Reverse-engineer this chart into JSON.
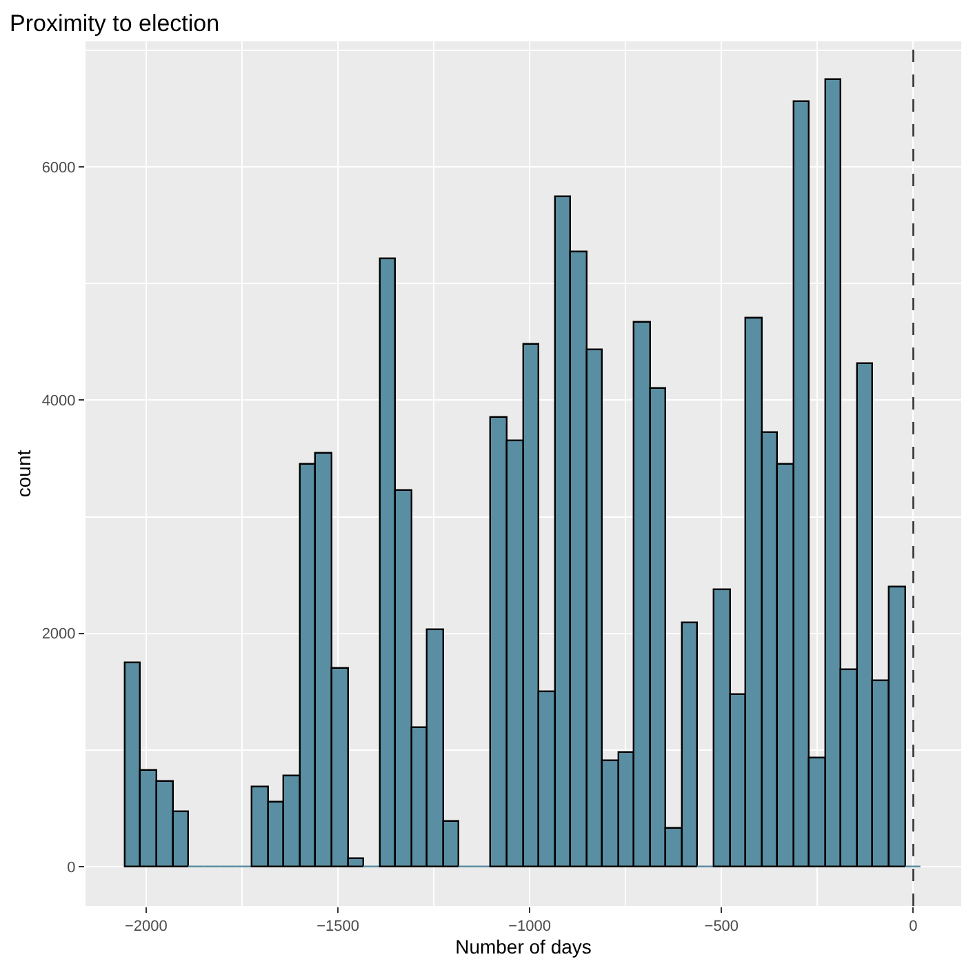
{
  "chart_data": {
    "type": "histogram",
    "title": "Proximity to election",
    "xlabel": "Number of days",
    "ylabel": "count",
    "bins": [
      -2054,
      -2012.5,
      -1971,
      -1929.5,
      -1888,
      -1846.5,
      -1805,
      -1763.5,
      -1722,
      -1680.5,
      -1639,
      -1597.5,
      -1556,
      -1514.5,
      -1473,
      -1431.5,
      -1390,
      -1348.5,
      -1307,
      -1265.5,
      -1224,
      -1182.5,
      -1141,
      -1099.5,
      -1058,
      -1016.5,
      -975,
      -933.5,
      -892,
      -850.5,
      -809,
      -767.5,
      -726,
      -684.5,
      -643,
      -601.5,
      -560,
      -518.5,
      -477,
      -435.5,
      -394,
      -352.5,
      -311,
      -269.5,
      -228,
      -186.5,
      -145,
      -103.5,
      -62,
      -20.5,
      21
    ],
    "values": [
      1740,
      820,
      730,
      470,
      0,
      0,
      0,
      0,
      680,
      550,
      780,
      3450,
      3540,
      1700,
      70,
      0,
      5210,
      3220,
      1190,
      2030,
      380,
      0,
      0,
      3850,
      3650,
      4470,
      1500,
      5740,
      5270,
      4430,
      910,
      980,
      4660,
      4100,
      330,
      2090,
      0,
      2370,
      1470,
      4700,
      3720,
      3450,
      6560,
      930,
      6750,
      1680,
      4310,
      1590,
      2390,
      0
    ],
    "color": "#5a8ea2",
    "xlim": [
      -2158,
      125
    ],
    "ylim": [
      -337,
      7077
    ],
    "xticks": [
      -2000,
      -1500,
      -1000,
      -500,
      0
    ],
    "yticks": [
      0,
      2000,
      4000,
      6000
    ],
    "grid": true,
    "ref_lines": [
      {
        "axis": "x",
        "value": 0,
        "line_style": "dashed",
        "color": "#333333"
      }
    ]
  }
}
